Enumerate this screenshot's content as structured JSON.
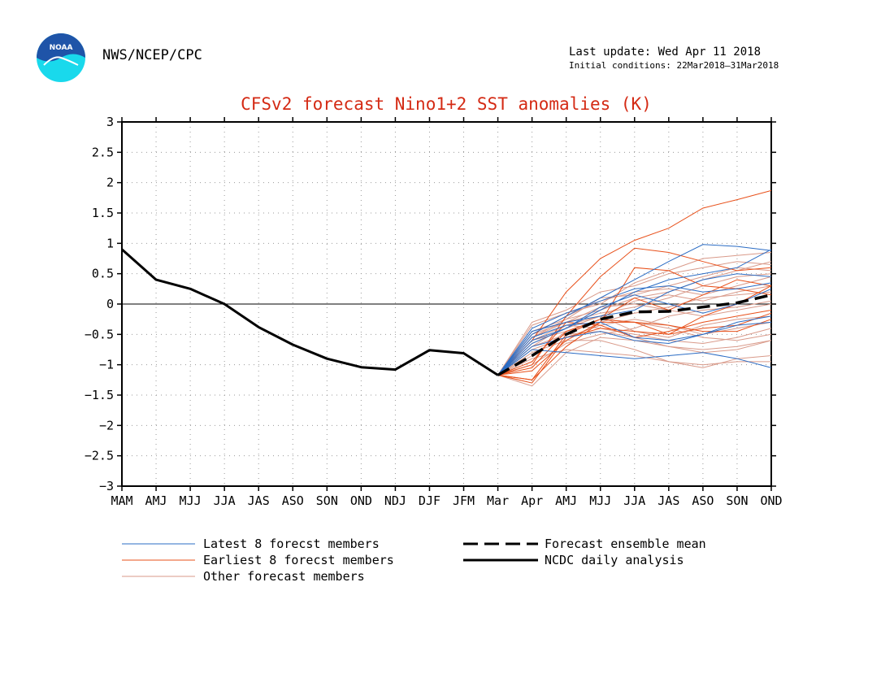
{
  "header": {
    "org": "NWS/NCEP/CPC",
    "last_update": "Last update: Wed Apr 11 2018",
    "initial_conditions": "Initial conditions: 22Mar2018–31Mar2018",
    "logo_text": "NOAA"
  },
  "legend": {
    "latest": "Latest 8 forecst members",
    "earliest": "Earliest 8 forecst members",
    "other": "Other forecast members",
    "mean": "Forecast ensemble mean",
    "ncdc": "NCDC daily analysis"
  },
  "colors": {
    "latest": "#2b6cc4",
    "earliest": "#e8501a",
    "other": "#d99a8a",
    "mean": "#000000",
    "ncdc": "#000000",
    "title": "#d42a14",
    "logo_blue": "#1f54a8",
    "logo_cyan": "#19d9ec"
  },
  "chart_data": {
    "type": "line",
    "title": "CFSv2 forecast Nino1+2 SST anomalies (K)",
    "xlabel": "",
    "ylabel": "",
    "categories": [
      "MAM",
      "AMJ",
      "MJJ",
      "JJA",
      "JAS",
      "ASO",
      "SON",
      "OND",
      "NDJ",
      "DJF",
      "JFM",
      "Mar",
      "Apr",
      "AMJ",
      "MJJ",
      "JJA",
      "JAS",
      "ASO",
      "SON",
      "OND"
    ],
    "ylim": [
      -3,
      3
    ],
    "yticks": [
      -3,
      -2.5,
      -2,
      -1.5,
      -1,
      -0.5,
      0,
      0.5,
      1,
      1.5,
      2,
      2.5,
      3
    ],
    "ytick_labels": [
      "−3",
      "−2.5",
      "−2",
      "−1.5",
      "−1",
      "−0.5",
      "0",
      "0.5",
      "1",
      "1.5",
      "2",
      "2.5",
      "3"
    ],
    "grid": true,
    "zero_line": true,
    "forecast_start_index": 11,
    "ncdc_analysis": [
      0.9,
      0.4,
      0.25,
      0.0,
      -0.38,
      -0.67,
      -0.9,
      -1.04,
      -1.08,
      -0.76,
      -0.81,
      -1.17
    ],
    "ensemble_mean": [
      -1.17,
      -0.85,
      -0.5,
      -0.25,
      -0.13,
      -0.12,
      -0.05,
      0.02,
      0.15
    ],
    "members_latest": [
      [
        -1.17,
        -0.5,
        -0.2,
        0.1,
        0.4,
        0.7,
        0.98,
        0.95,
        0.88
      ],
      [
        -1.17,
        -0.6,
        -0.4,
        -0.1,
        0.2,
        0.4,
        0.5,
        0.6,
        0.9
      ],
      [
        -1.17,
        -0.75,
        -0.8,
        -0.85,
        -0.9,
        -0.85,
        -0.8,
        -0.9,
        -1.05
      ],
      [
        -1.17,
        -0.45,
        -0.3,
        -0.2,
        -0.1,
        0.2,
        0.4,
        0.5,
        0.45
      ],
      [
        -1.17,
        -0.55,
        -0.35,
        -0.3,
        -0.55,
        -0.6,
        -0.5,
        -0.35,
        -0.3
      ],
      [
        -1.17,
        -0.7,
        -0.55,
        -0.45,
        -0.6,
        -0.65,
        -0.5,
        -0.3,
        -0.2
      ],
      [
        -1.17,
        -0.4,
        -0.15,
        0.05,
        0.25,
        0.3,
        0.2,
        0.25,
        0.35
      ],
      [
        -1.17,
        -0.65,
        -0.4,
        -0.05,
        0.15,
        0.0,
        -0.15,
        0.0,
        0.25
      ]
    ],
    "members_earliest": [
      [
        -1.17,
        -0.6,
        0.2,
        0.75,
        1.05,
        1.25,
        1.58,
        1.72,
        1.87
      ],
      [
        -1.17,
        -1.0,
        -0.2,
        0.45,
        0.92,
        0.85,
        0.7,
        0.55,
        0.6
      ],
      [
        -1.17,
        -1.25,
        -0.7,
        -0.3,
        0.6,
        0.55,
        0.3,
        0.25,
        0.15
      ],
      [
        -1.17,
        -1.25,
        -0.5,
        -0.25,
        -0.3,
        -0.5,
        -0.2,
        0.0,
        0.3
      ],
      [
        -1.17,
        -1.05,
        -0.45,
        -0.25,
        0.1,
        -0.1,
        0.15,
        0.4,
        0.3
      ],
      [
        -1.17,
        -1.3,
        -0.55,
        -0.4,
        -0.45,
        -0.5,
        -0.4,
        -0.35,
        -0.15
      ],
      [
        -1.17,
        -0.95,
        -0.3,
        -0.35,
        -0.55,
        -0.45,
        -0.3,
        -0.2,
        -0.1
      ],
      [
        -1.17,
        -1.1,
        -0.6,
        -0.3,
        -0.3,
        -0.35,
        -0.45,
        -0.45,
        -0.25
      ]
    ],
    "members_other": [
      [
        -1.17,
        -0.3,
        -0.1,
        0.2,
        0.3,
        0.5,
        0.6,
        0.7,
        0.65
      ],
      [
        -1.17,
        -0.45,
        -0.25,
        -0.1,
        0.1,
        0.2,
        0.4,
        0.55,
        0.7
      ],
      [
        -1.17,
        -0.9,
        -0.75,
        -0.8,
        -0.85,
        -0.95,
        -1.0,
        -0.95,
        -0.95
      ],
      [
        -1.17,
        -0.8,
        -0.6,
        -0.6,
        -0.75,
        -0.95,
        -1.05,
        -0.9,
        -0.85
      ],
      [
        -1.17,
        -0.7,
        -0.5,
        -0.45,
        -0.55,
        -0.7,
        -0.8,
        -0.75,
        -0.6
      ],
      [
        -1.17,
        -0.6,
        -0.45,
        -0.25,
        -0.3,
        -0.4,
        -0.55,
        -0.6,
        -0.5
      ],
      [
        -1.17,
        -0.55,
        -0.3,
        -0.05,
        0.0,
        -0.1,
        -0.2,
        -0.1,
        0.0
      ],
      [
        -1.17,
        -0.5,
        -0.2,
        0.05,
        0.2,
        0.25,
        0.15,
        0.3,
        0.45
      ],
      [
        -1.17,
        -0.35,
        -0.15,
        0.0,
        0.35,
        0.55,
        0.75,
        0.8,
        0.85
      ],
      [
        -1.17,
        -0.65,
        -0.4,
        -0.2,
        0.05,
        0.15,
        0.05,
        0.2,
        0.3
      ],
      [
        -1.17,
        -1.35,
        -0.8,
        -0.55,
        -0.6,
        -0.7,
        -0.75,
        -0.7,
        -0.6
      ],
      [
        -1.17,
        -0.75,
        -0.55,
        -0.35,
        -0.25,
        -0.35,
        -0.5,
        -0.4,
        -0.3
      ],
      [
        -1.17,
        -0.6,
        -0.35,
        -0.4,
        -0.5,
        -0.6,
        -0.65,
        -0.55,
        -0.4
      ],
      [
        -1.17,
        -0.85,
        -0.45,
        -0.3,
        -0.15,
        -0.05,
        0.1,
        0.15,
        0.2
      ],
      [
        -1.17,
        -0.5,
        -0.3,
        -0.15,
        -0.05,
        0.1,
        0.3,
        0.45,
        0.5
      ],
      [
        -1.17,
        -1.0,
        -0.65,
        -0.5,
        -0.4,
        -0.2,
        -0.1,
        -0.05,
        0.05
      ],
      [
        -1.17,
        -0.7,
        -0.35,
        -0.2,
        -0.45,
        -0.55,
        -0.35,
        -0.25,
        -0.2
      ],
      [
        -1.17,
        -0.55,
        -0.25,
        0.1,
        0.15,
        0.3,
        0.45,
        0.6,
        0.55
      ]
    ]
  }
}
